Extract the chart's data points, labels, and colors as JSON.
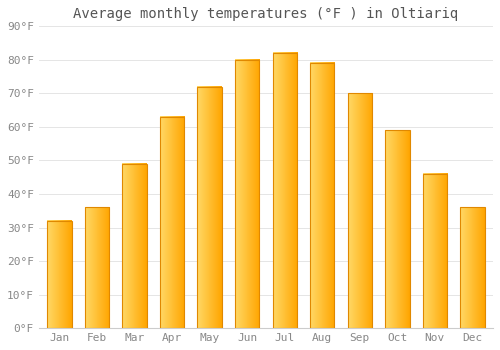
{
  "title": "Average monthly temperatures (°F ) in Oltiariq",
  "months": [
    "Jan",
    "Feb",
    "Mar",
    "Apr",
    "May",
    "Jun",
    "Jul",
    "Aug",
    "Sep",
    "Oct",
    "Nov",
    "Dec"
  ],
  "values": [
    32,
    36,
    49,
    63,
    72,
    80,
    82,
    79,
    70,
    59,
    46,
    36
  ],
  "bar_color_left": "#FFD966",
  "bar_color_right": "#FFA500",
  "bar_edge_color": "#E08800",
  "background_color": "#FFFFFF",
  "grid_color": "#E0E0E0",
  "ylim": [
    0,
    90
  ],
  "yticks": [
    0,
    10,
    20,
    30,
    40,
    50,
    60,
    70,
    80,
    90
  ],
  "ytick_labels": [
    "0°F",
    "10°F",
    "20°F",
    "30°F",
    "40°F",
    "50°F",
    "60°F",
    "70°F",
    "80°F",
    "90°F"
  ],
  "title_fontsize": 10,
  "tick_fontsize": 8,
  "font_family": "monospace",
  "tick_color": "#888888",
  "title_color": "#555555"
}
